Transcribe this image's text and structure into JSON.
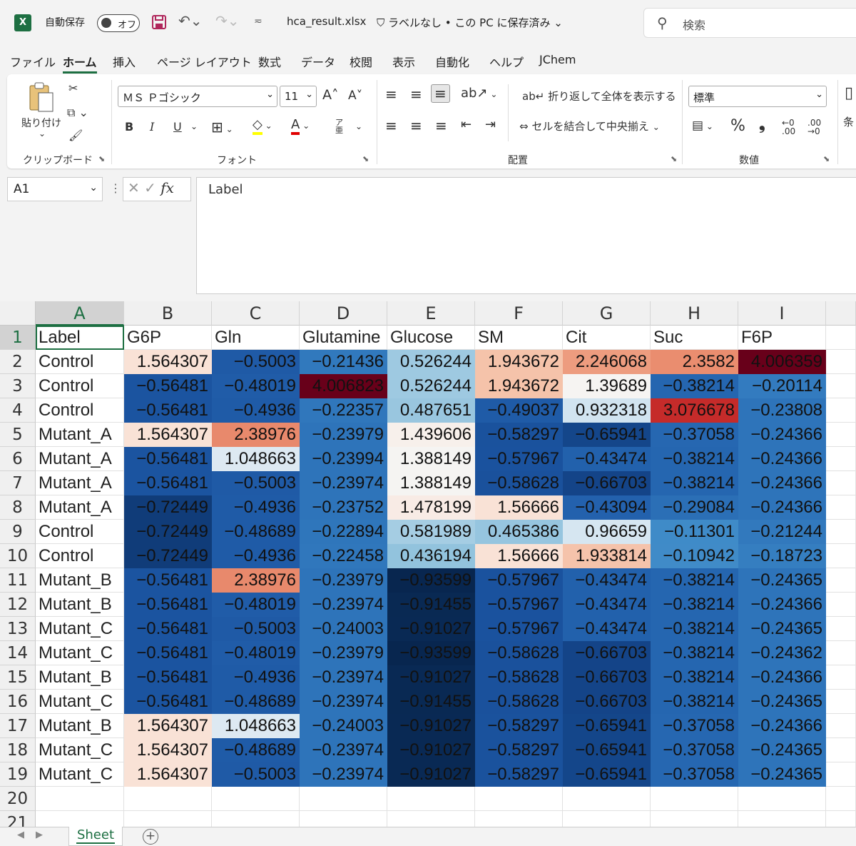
{
  "titlebar": {
    "logo": "X",
    "autosave_label": "自動保存",
    "toggle_label": "オフ",
    "filename": "hca_result.xlsx",
    "label_info": "ラベルなし • この PC に保存済み",
    "search_placeholder": "検索"
  },
  "menu": [
    "ファイル",
    "ホーム",
    "挿入",
    "ページ レイアウト",
    "数式",
    "データ",
    "校閲",
    "表示",
    "自動化",
    "ヘルプ",
    "JChem"
  ],
  "menu_active": "ホーム",
  "ribbon": {
    "paste_label": "貼り付け",
    "clipboard_group": "クリップボード",
    "font_name": "ＭＳ Ｐゴシック",
    "font_size": "11",
    "font_group": "フォント",
    "bold": "B",
    "italic": "I",
    "underline": "U",
    "wrap_text": "折り返して全体を表示する",
    "merge_center": "セルを結合して中央揃え",
    "align_group": "配置",
    "number_format": "標準",
    "number_group": "数値",
    "percent": "%",
    "comma": "❟",
    "cond_format_partial": "条"
  },
  "formula_bar": {
    "name_box": "A1",
    "content": "Label"
  },
  "colors": {
    "accent": "#1d6f42"
  },
  "sheet": {
    "columns": [
      "A",
      "B",
      "C",
      "D",
      "E",
      "F",
      "G",
      "H",
      "I"
    ],
    "row_numbers": [
      "1",
      "2",
      "3",
      "4",
      "5",
      "6",
      "7",
      "8",
      "9",
      "10",
      "11",
      "12",
      "13",
      "14",
      "15",
      "16",
      "17",
      "18",
      "19",
      "20",
      "21"
    ],
    "header": [
      "Label",
      "G6P",
      "Gln",
      "Glutamine",
      "Glucose",
      "SM",
      "Cit",
      "Suc",
      "F6P"
    ],
    "rows": [
      [
        "Control",
        "1.564307",
        "−0.5003",
        "−0.21436",
        "0.526244",
        "1.943672",
        "2.246068",
        "2.3582",
        "4.006359"
      ],
      [
        "Control",
        "−0.56481",
        "−0.48019",
        "4.006823",
        "0.526244",
        "1.943672",
        "1.39689",
        "−0.38214",
        "−0.20114"
      ],
      [
        "Control",
        "−0.56481",
        "−0.4936",
        "−0.22357",
        "0.487651",
        "−0.49037",
        "0.932318",
        "3.076678",
        "−0.23808"
      ],
      [
        "Mutant_A",
        "1.564307",
        "2.38976",
        "−0.23979",
        "1.439606",
        "−0.58297",
        "−0.65941",
        "−0.37058",
        "−0.24366"
      ],
      [
        "Mutant_A",
        "−0.56481",
        "1.048663",
        "−0.23994",
        "1.388149",
        "−0.57967",
        "−0.43474",
        "−0.38214",
        "−0.24366"
      ],
      [
        "Mutant_A",
        "−0.56481",
        "−0.5003",
        "−0.23974",
        "1.388149",
        "−0.58628",
        "−0.66703",
        "−0.38214",
        "−0.24366"
      ],
      [
        "Mutant_A",
        "−0.72449",
        "−0.4936",
        "−0.23752",
        "1.478199",
        "1.56666",
        "−0.43094",
        "−0.29084",
        "−0.24366"
      ],
      [
        "Control",
        "−0.72449",
        "−0.48689",
        "−0.22894",
        "0.581989",
        "0.465386",
        "0.96659",
        "−0.11301",
        "−0.21244"
      ],
      [
        "Control",
        "−0.72449",
        "−0.4936",
        "−0.22458",
        "0.436194",
        "1.56666",
        "1.933814",
        "−0.10942",
        "−0.18723"
      ],
      [
        "Mutant_B",
        "−0.56481",
        "2.38976",
        "−0.23979",
        "−0.93599",
        "−0.57967",
        "−0.43474",
        "−0.38214",
        "−0.24365"
      ],
      [
        "Mutant_B",
        "−0.56481",
        "−0.48019",
        "−0.23974",
        "−0.91455",
        "−0.57967",
        "−0.43474",
        "−0.38214",
        "−0.24366"
      ],
      [
        "Mutant_C",
        "−0.56481",
        "−0.5003",
        "−0.24003",
        "−0.91027",
        "−0.57967",
        "−0.43474",
        "−0.38214",
        "−0.24365"
      ],
      [
        "Mutant_C",
        "−0.56481",
        "−0.48019",
        "−0.23979",
        "−0.93599",
        "−0.58628",
        "−0.66703",
        "−0.38214",
        "−0.24362"
      ],
      [
        "Mutant_B",
        "−0.56481",
        "−0.4936",
        "−0.23974",
        "−0.91027",
        "−0.58628",
        "−0.66703",
        "−0.38214",
        "−0.24366"
      ],
      [
        "Mutant_C",
        "−0.56481",
        "−0.48689",
        "−0.23974",
        "−0.91455",
        "−0.58628",
        "−0.66703",
        "−0.38214",
        "−0.24365"
      ],
      [
        "Mutant_B",
        "1.564307",
        "1.048663",
        "−0.24003",
        "−0.91027",
        "−0.58297",
        "−0.65941",
        "−0.37058",
        "−0.24366"
      ],
      [
        "Mutant_C",
        "1.564307",
        "−0.48689",
        "−0.23974",
        "−0.91027",
        "−0.58297",
        "−0.65941",
        "−0.37058",
        "−0.24365"
      ],
      [
        "Mutant_C",
        "1.564307",
        "−0.5003",
        "−0.23974",
        "−0.91027",
        "−0.58297",
        "−0.65941",
        "−0.37058",
        "−0.24365"
      ]
    ],
    "tab_name": "Sheet"
  }
}
